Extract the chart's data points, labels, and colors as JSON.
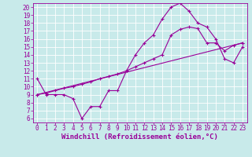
{
  "background_color": "#c8eaea",
  "grid_color": "#ffffff",
  "line_color": "#990099",
  "marker": "+",
  "marker_size": 3,
  "line_width": 0.8,
  "xlabel": "Windchill (Refroidissement éolien,°C)",
  "xlabel_fontsize": 6.5,
  "xlim": [
    -0.5,
    23.5
  ],
  "ylim": [
    5.5,
    20.5
  ],
  "xticks": [
    0,
    1,
    2,
    3,
    4,
    5,
    6,
    7,
    8,
    9,
    10,
    11,
    12,
    13,
    14,
    15,
    16,
    17,
    18,
    19,
    20,
    21,
    22,
    23
  ],
  "yticks": [
    6,
    7,
    8,
    9,
    10,
    11,
    12,
    13,
    14,
    15,
    16,
    17,
    18,
    19,
    20
  ],
  "tick_fontsize": 5.5,
  "line1_x": [
    0,
    1,
    2,
    3,
    4,
    5,
    6,
    7,
    8,
    9,
    10,
    11,
    12,
    13,
    14,
    15,
    16,
    17,
    18,
    19,
    20,
    21,
    22,
    23
  ],
  "line1_y": [
    11.0,
    9.0,
    9.0,
    9.0,
    8.5,
    6.0,
    7.5,
    7.5,
    9.5,
    9.5,
    12.0,
    14.0,
    15.5,
    16.5,
    18.5,
    20.0,
    20.5,
    19.5,
    18.0,
    17.5,
    16.0,
    13.5,
    13.0,
    15.0
  ],
  "line2_x": [
    0,
    1,
    2,
    3,
    4,
    5,
    6,
    7,
    8,
    9,
    10,
    11,
    12,
    13,
    14,
    15,
    16,
    17,
    18,
    19,
    20,
    21,
    22,
    23
  ],
  "line2_y": [
    9.0,
    9.2,
    9.5,
    9.8,
    10.0,
    10.3,
    10.6,
    11.0,
    11.3,
    11.6,
    12.0,
    12.5,
    13.0,
    13.5,
    14.0,
    16.5,
    17.2,
    17.5,
    17.3,
    15.5,
    15.5,
    14.5,
    15.2,
    15.5
  ],
  "line3_x": [
    0,
    23
  ],
  "line3_y": [
    9.0,
    15.5
  ]
}
